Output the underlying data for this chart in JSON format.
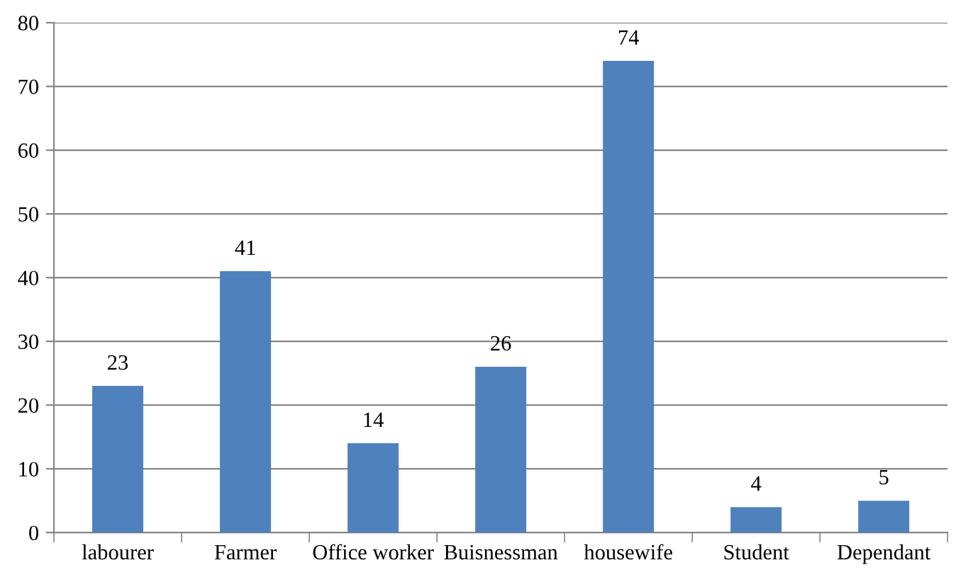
{
  "chart_data": {
    "type": "bar",
    "categories": [
      "labourer",
      "Farmer",
      "Office worker",
      "Buisnessman",
      "housewife",
      "Student",
      "Dependant"
    ],
    "values": [
      23,
      41,
      14,
      26,
      74,
      4,
      5
    ],
    "color": "#4f81bd",
    "ylim": [
      0,
      80
    ],
    "yticks": [
      0,
      10,
      20,
      30,
      40,
      50,
      60,
      70,
      80
    ],
    "grid": "y",
    "data_labels": true
  }
}
